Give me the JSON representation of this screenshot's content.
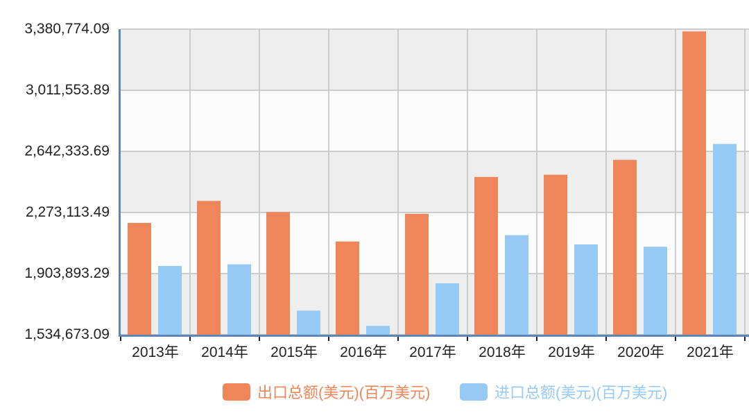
{
  "chart_data": {
    "type": "bar",
    "title": "",
    "xlabel": "",
    "ylabel": "",
    "categories": [
      "2013年",
      "2014年",
      "2015年",
      "2016年",
      "2017年",
      "2018年",
      "2019年",
      "2020年",
      "2021年"
    ],
    "series": [
      {
        "name": "出口总额(美元)(百万美元)",
        "color": "#EE865A",
        "values": [
          2210000,
          2343000,
          2276000,
          2098000,
          2265000,
          2488000,
          2501000,
          2591000,
          3367000
        ]
      },
      {
        "name": "进口总额(美元)(百万美元)",
        "color": "#96CAF4",
        "values": [
          1950000,
          1960000,
          1680000,
          1588000,
          1845000,
          2136000,
          2080000,
          2066000,
          2687000
        ]
      }
    ],
    "ylim": [
      1534673.09,
      3380774.09
    ],
    "yticks": [
      "1,534,673.09",
      "1,903,893.29",
      "2,273,113.49",
      "2,642,333.69",
      "3,011,553.89",
      "3,380,774.09"
    ],
    "grid": true,
    "legend_position": "bottom"
  },
  "legend": {
    "items": [
      {
        "label": "出口总额(美元)(百万美元)",
        "color": "#EE865A"
      },
      {
        "label": "进口总额(美元)(百万美元)",
        "color": "#96CAF4"
      }
    ]
  }
}
